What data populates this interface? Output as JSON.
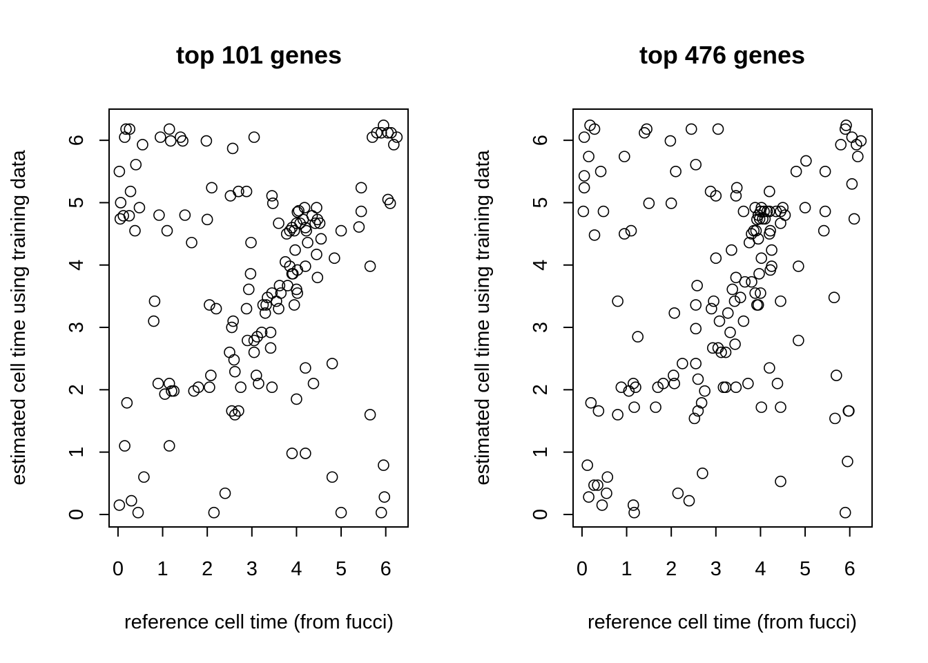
{
  "chart_data": [
    {
      "type": "scatter",
      "title": "top 101 genes",
      "xlabel": "reference cell time (from fucci)",
      "ylabel": "estimated cell time using training data",
      "xlim": [
        -0.2,
        6.5
      ],
      "ylim": [
        -0.2,
        6.5
      ],
      "xticks": [
        0,
        1,
        2,
        3,
        4,
        5,
        6
      ],
      "yticks": [
        0,
        1,
        2,
        3,
        4,
        5,
        6
      ],
      "grid": false,
      "marker": "open-circle",
      "points": [
        [
          0.03,
          0.15
        ],
        [
          0.3,
          0.22
        ],
        [
          0.45,
          0.03
        ],
        [
          0.58,
          0.6
        ],
        [
          0.15,
          1.1
        ],
        [
          0.2,
          1.79
        ],
        [
          1.15,
          1.1
        ],
        [
          2.15,
          0.03
        ],
        [
          2.4,
          0.34
        ],
        [
          3.9,
          0.98
        ],
        [
          4.2,
          0.98
        ],
        [
          4.8,
          0.6
        ],
        [
          5.0,
          0.03
        ],
        [
          5.9,
          0.03
        ],
        [
          5.95,
          0.79
        ],
        [
          5.97,
          0.28
        ],
        [
          5.65,
          1.6
        ],
        [
          4.8,
          2.42
        ],
        [
          0.9,
          2.1
        ],
        [
          1.05,
          1.93
        ],
        [
          1.15,
          2.1
        ],
        [
          1.2,
          1.98
        ],
        [
          1.25,
          1.98
        ],
        [
          1.7,
          1.98
        ],
        [
          1.8,
          2.04
        ],
        [
          2.05,
          2.04
        ],
        [
          2.08,
          2.23
        ],
        [
          0.8,
          3.1
        ],
        [
          0.82,
          3.42
        ],
        [
          2.05,
          3.36
        ],
        [
          2.2,
          3.3
        ],
        [
          2.5,
          2.6
        ],
        [
          2.6,
          2.48
        ],
        [
          2.62,
          2.29
        ],
        [
          2.75,
          2.04
        ],
        [
          2.55,
          1.66
        ],
        [
          2.62,
          1.6
        ],
        [
          2.7,
          1.66
        ],
        [
          2.55,
          3.0
        ],
        [
          2.58,
          3.1
        ],
        [
          2.88,
          3.3
        ],
        [
          2.9,
          2.79
        ],
        [
          3.05,
          2.6
        ],
        [
          3.05,
          2.79
        ],
        [
          3.1,
          2.23
        ],
        [
          3.12,
          2.85
        ],
        [
          3.15,
          2.1
        ],
        [
          3.22,
          2.92
        ],
        [
          3.25,
          3.36
        ],
        [
          3.3,
          3.23
        ],
        [
          3.32,
          3.36
        ],
        [
          3.35,
          3.48
        ],
        [
          3.42,
          2.92
        ],
        [
          3.42,
          2.67
        ],
        [
          3.45,
          2.04
        ],
        [
          3.45,
          3.55
        ],
        [
          3.55,
          3.42
        ],
        [
          3.6,
          3.3
        ],
        [
          3.62,
          3.67
        ],
        [
          3.65,
          3.55
        ],
        [
          2.93,
          3.61
        ],
        [
          2.97,
          3.86
        ],
        [
          2.98,
          4.36
        ],
        [
          3.75,
          4.05
        ],
        [
          3.8,
          3.67
        ],
        [
          3.85,
          3.98
        ],
        [
          3.9,
          3.86
        ],
        [
          3.92,
          3.86
        ],
        [
          3.95,
          3.36
        ],
        [
          3.97,
          4.24
        ],
        [
          4.0,
          3.61
        ],
        [
          4.02,
          3.55
        ],
        [
          4.02,
          3.92
        ],
        [
          4.2,
          3.98
        ],
        [
          4.25,
          4.36
        ],
        [
          4.45,
          4.17
        ],
        [
          4.47,
          3.8
        ],
        [
          4.55,
          4.42
        ],
        [
          3.78,
          4.5
        ],
        [
          3.85,
          4.55
        ],
        [
          3.9,
          4.6
        ],
        [
          3.95,
          4.55
        ],
        [
          4.0,
          4.67
        ],
        [
          4.02,
          4.85
        ],
        [
          4.05,
          4.87
        ],
        [
          4.08,
          4.67
        ],
        [
          4.15,
          4.73
        ],
        [
          4.18,
          4.92
        ],
        [
          4.2,
          4.6
        ],
        [
          4.22,
          4.55
        ],
        [
          4.35,
          4.79
        ],
        [
          4.42,
          4.67
        ],
        [
          4.45,
          4.92
        ],
        [
          4.47,
          4.73
        ],
        [
          4.52,
          4.67
        ],
        [
          3.6,
          4.67
        ],
        [
          3.45,
          5.11
        ],
        [
          3.47,
          4.99
        ],
        [
          4.0,
          1.85
        ],
        [
          4.2,
          2.35
        ],
        [
          4.38,
          2.1
        ],
        [
          4.85,
          4.11
        ],
        [
          5.0,
          4.55
        ],
        [
          5.4,
          4.61
        ],
        [
          5.45,
          4.86
        ],
        [
          5.45,
          5.24
        ],
        [
          5.65,
          3.98
        ],
        [
          6.05,
          5.05
        ],
        [
          6.1,
          4.99
        ],
        [
          0.03,
          5.5
        ],
        [
          0.05,
          4.74
        ],
        [
          0.06,
          5.0
        ],
        [
          0.12,
          4.79
        ],
        [
          0.25,
          4.79
        ],
        [
          0.28,
          5.18
        ],
        [
          0.38,
          4.55
        ],
        [
          0.4,
          5.61
        ],
        [
          0.48,
          4.92
        ],
        [
          0.15,
          6.05
        ],
        [
          0.18,
          6.18
        ],
        [
          0.26,
          6.18
        ],
        [
          0.55,
          5.93
        ],
        [
          0.95,
          6.05
        ],
        [
          1.15,
          6.18
        ],
        [
          1.18,
          5.99
        ],
        [
          1.4,
          6.05
        ],
        [
          1.45,
          5.99
        ],
        [
          1.1,
          4.55
        ],
        [
          0.92,
          4.8
        ],
        [
          1.5,
          4.8
        ],
        [
          1.65,
          4.36
        ],
        [
          1.98,
          5.99
        ],
        [
          2.0,
          4.73
        ],
        [
          2.1,
          5.24
        ],
        [
          2.52,
          5.11
        ],
        [
          2.57,
          5.87
        ],
        [
          2.7,
          5.18
        ],
        [
          2.88,
          5.18
        ],
        [
          3.05,
          6.05
        ],
        [
          5.7,
          6.05
        ],
        [
          5.8,
          6.12
        ],
        [
          5.9,
          6.12
        ],
        [
          5.95,
          6.24
        ],
        [
          6.05,
          6.12
        ],
        [
          6.12,
          6.12
        ],
        [
          6.18,
          5.93
        ],
        [
          6.25,
          6.05
        ]
      ]
    },
    {
      "type": "scatter",
      "title": "top 476 genes",
      "xlabel": "reference cell time (from fucci)",
      "ylabel": "estimated cell time using training data",
      "xlim": [
        -0.2,
        6.5
      ],
      "ylim": [
        -0.2,
        6.5
      ],
      "xticks": [
        0,
        1,
        2,
        3,
        4,
        5,
        6
      ],
      "yticks": [
        0,
        1,
        2,
        3,
        4,
        5,
        6
      ],
      "grid": false,
      "marker": "open-circle",
      "points": [
        [
          0.12,
          0.79
        ],
        [
          0.15,
          0.28
        ],
        [
          0.27,
          0.47
        ],
        [
          0.35,
          0.47
        ],
        [
          0.45,
          0.15
        ],
        [
          0.55,
          0.34
        ],
        [
          0.57,
          0.6
        ],
        [
          1.15,
          0.15
        ],
        [
          1.17,
          0.03
        ],
        [
          2.15,
          0.34
        ],
        [
          2.4,
          0.22
        ],
        [
          2.7,
          0.66
        ],
        [
          4.45,
          0.53
        ],
        [
          5.9,
          0.03
        ],
        [
          5.95,
          0.85
        ],
        [
          5.97,
          1.66
        ],
        [
          5.98,
          1.66
        ],
        [
          5.67,
          1.54
        ],
        [
          5.7,
          2.23
        ],
        [
          5.65,
          3.48
        ],
        [
          0.2,
          1.79
        ],
        [
          0.37,
          1.66
        ],
        [
          0.8,
          1.6
        ],
        [
          0.88,
          2.04
        ],
        [
          1.05,
          1.98
        ],
        [
          1.15,
          2.1
        ],
        [
          1.17,
          1.72
        ],
        [
          1.2,
          2.04
        ],
        [
          1.25,
          2.85
        ],
        [
          0.8,
          3.42
        ],
        [
          1.65,
          1.72
        ],
        [
          1.7,
          2.04
        ],
        [
          1.82,
          2.1
        ],
        [
          2.05,
          2.23
        ],
        [
          2.07,
          2.1
        ],
        [
          2.25,
          2.42
        ],
        [
          2.52,
          1.54
        ],
        [
          2.6,
          1.66
        ],
        [
          2.68,
          1.79
        ],
        [
          2.75,
          1.98
        ],
        [
          2.55,
          2.42
        ],
        [
          2.6,
          2.17
        ],
        [
          2.07,
          3.23
        ],
        [
          2.55,
          2.98
        ],
        [
          2.55,
          3.36
        ],
        [
          2.58,
          3.67
        ],
        [
          2.9,
          3.3
        ],
        [
          2.95,
          3.42
        ],
        [
          2.93,
          2.67
        ],
        [
          3.05,
          2.67
        ],
        [
          3.08,
          3.1
        ],
        [
          3.12,
          2.6
        ],
        [
          3.17,
          2.04
        ],
        [
          3.22,
          2.04
        ],
        [
          3.22,
          2.6
        ],
        [
          3.27,
          3.23
        ],
        [
          3.32,
          2.92
        ],
        [
          3.37,
          3.61
        ],
        [
          3.42,
          3.42
        ],
        [
          3.43,
          2.73
        ],
        [
          3.45,
          2.04
        ],
        [
          3.45,
          3.8
        ],
        [
          3.55,
          3.48
        ],
        [
          3.62,
          3.1
        ],
        [
          3.65,
          3.73
        ],
        [
          3.72,
          2.1
        ],
        [
          3.8,
          3.73
        ],
        [
          3.88,
          3.55
        ],
        [
          3.92,
          3.36
        ],
        [
          3.95,
          3.36
        ],
        [
          3.97,
          3.86
        ],
        [
          4.0,
          3.55
        ],
        [
          4.02,
          4.11
        ],
        [
          4.02,
          1.72
        ],
        [
          4.2,
          2.35
        ],
        [
          4.22,
          3.92
        ],
        [
          4.25,
          3.98
        ],
        [
          4.38,
          2.1
        ],
        [
          4.45,
          3.42
        ],
        [
          4.45,
          1.72
        ],
        [
          3.0,
          4.11
        ],
        [
          3.35,
          4.24
        ],
        [
          3.75,
          4.36
        ],
        [
          3.8,
          4.5
        ],
        [
          3.85,
          4.55
        ],
        [
          3.9,
          4.55
        ],
        [
          3.95,
          4.42
        ],
        [
          3.92,
          4.73
        ],
        [
          3.95,
          4.8
        ],
        [
          3.98,
          4.74
        ],
        [
          4.0,
          4.86
        ],
        [
          4.02,
          4.92
        ],
        [
          4.05,
          4.74
        ],
        [
          4.08,
          4.86
        ],
        [
          4.1,
          4.74
        ],
        [
          4.15,
          4.86
        ],
        [
          4.2,
          4.5
        ],
        [
          4.22,
          4.55
        ],
        [
          4.25,
          4.24
        ],
        [
          4.2,
          4.86
        ],
        [
          4.35,
          4.86
        ],
        [
          4.45,
          4.67
        ],
        [
          4.45,
          4.86
        ],
        [
          4.5,
          4.92
        ],
        [
          4.55,
          4.8
        ],
        [
          3.62,
          4.86
        ],
        [
          3.45,
          5.11
        ],
        [
          3.47,
          5.24
        ],
        [
          3.88,
          4.92
        ],
        [
          4.2,
          5.18
        ],
        [
          4.8,
          5.5
        ],
        [
          4.85,
          2.79
        ],
        [
          4.85,
          3.98
        ],
        [
          5.0,
          4.92
        ],
        [
          5.02,
          5.67
        ],
        [
          5.42,
          4.55
        ],
        [
          5.45,
          4.86
        ],
        [
          5.45,
          5.5
        ],
        [
          6.05,
          5.3
        ],
        [
          6.1,
          4.74
        ],
        [
          0.03,
          4.86
        ],
        [
          0.05,
          5.24
        ],
        [
          0.05,
          5.43
        ],
        [
          0.15,
          5.74
        ],
        [
          0.42,
          5.5
        ],
        [
          0.48,
          4.86
        ],
        [
          0.28,
          4.48
        ],
        [
          0.95,
          4.5
        ],
        [
          1.1,
          4.55
        ],
        [
          0.05,
          6.05
        ],
        [
          0.18,
          6.24
        ],
        [
          0.28,
          6.18
        ],
        [
          0.95,
          5.74
        ],
        [
          1.4,
          6.12
        ],
        [
          1.45,
          6.18
        ],
        [
          1.5,
          4.99
        ],
        [
          1.98,
          5.99
        ],
        [
          2.0,
          4.99
        ],
        [
          2.1,
          5.5
        ],
        [
          2.45,
          6.18
        ],
        [
          2.55,
          5.61
        ],
        [
          2.88,
          5.18
        ],
        [
          3.0,
          5.11
        ],
        [
          3.05,
          6.18
        ],
        [
          5.8,
          5.93
        ],
        [
          5.9,
          6.18
        ],
        [
          5.92,
          6.24
        ],
        [
          6.05,
          6.05
        ],
        [
          6.15,
          5.93
        ],
        [
          6.18,
          5.74
        ],
        [
          6.25,
          5.99
        ]
      ]
    }
  ]
}
